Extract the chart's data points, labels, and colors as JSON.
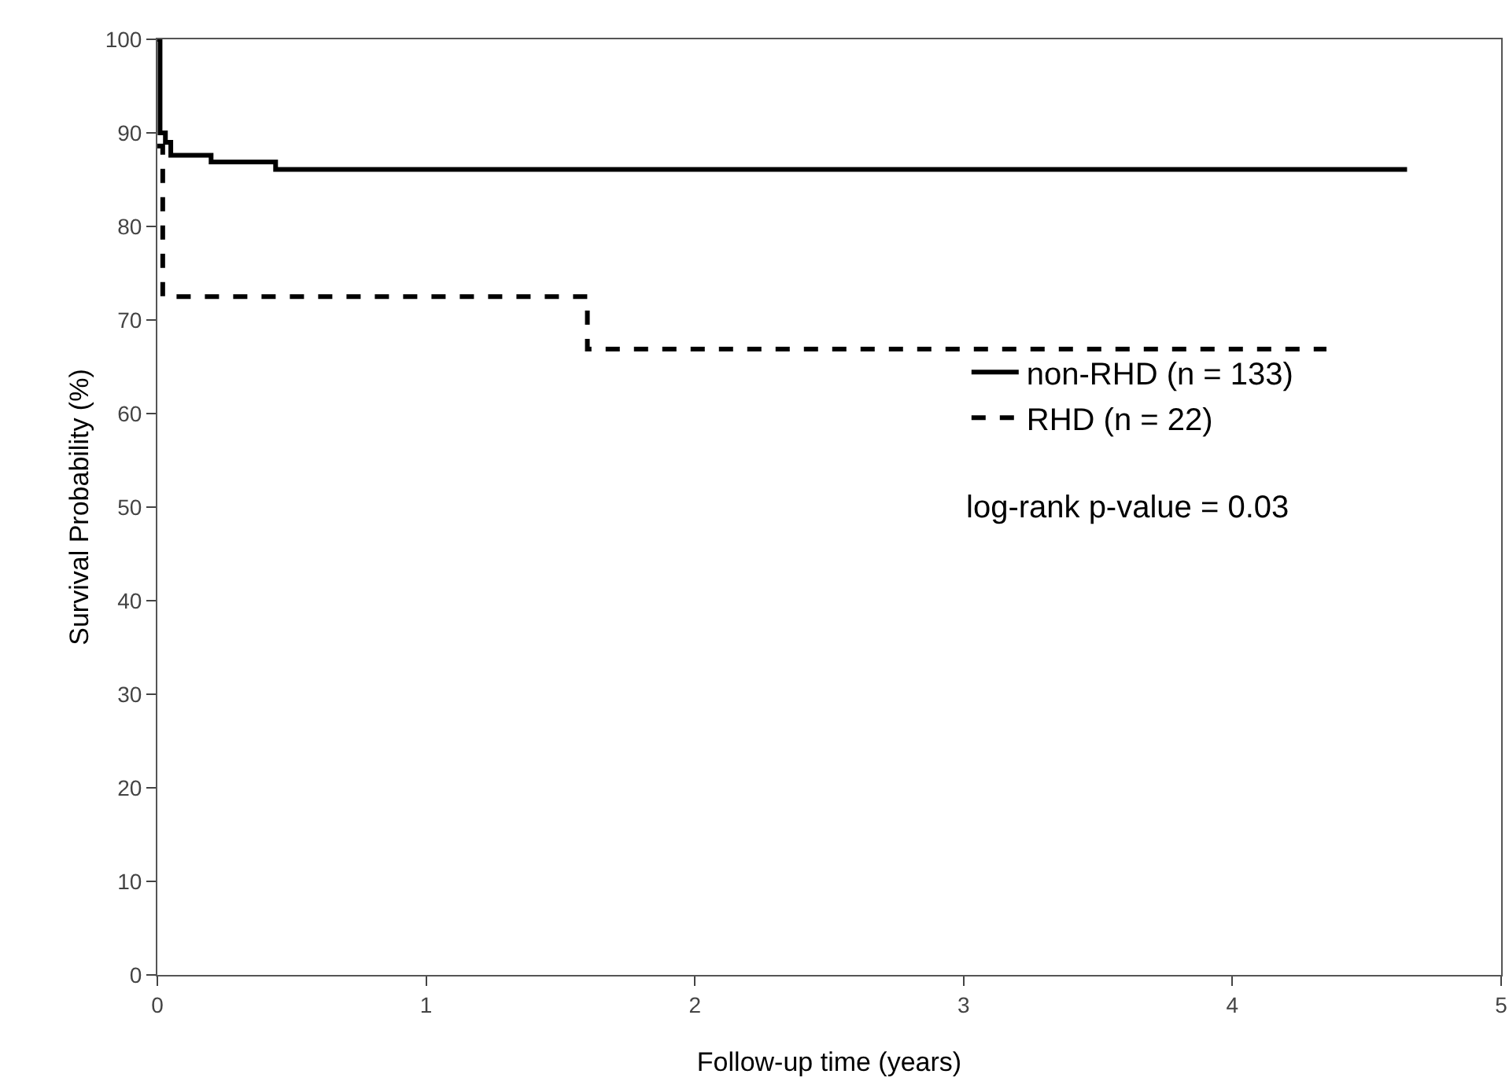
{
  "chart_data": {
    "type": "step",
    "xlabel": "Follow-up time (years)",
    "ylabel": "Survival Probability (%)",
    "xlim": [
      0,
      5
    ],
    "xticks": [
      0,
      1,
      2,
      3,
      4,
      5
    ],
    "ylim": [
      0,
      100
    ],
    "yticks": [
      0,
      10,
      20,
      30,
      40,
      50,
      60,
      70,
      80,
      90,
      100
    ],
    "grid": false,
    "legend": "right",
    "marker": "none",
    "series": [
      {
        "name": "non-RHD (n = 133)",
        "color": "#000000",
        "line_style": "solid",
        "x": [
          0,
          0.01,
          0.03,
          0.05,
          0.2,
          0.44,
          4.65
        ],
        "values": [
          100,
          90,
          89,
          87.6,
          86.9,
          86.1,
          86.1
        ]
      },
      {
        "name": "RHD (n = 22)",
        "color": "#000000",
        "line_style": "dashed",
        "x": [
          0,
          0.02,
          1.6,
          4.35
        ],
        "values": [
          88.6,
          72.5,
          66.9,
          66.9
        ]
      }
    ],
    "annotations": [
      "log-rank p-value = 0.03"
    ]
  }
}
